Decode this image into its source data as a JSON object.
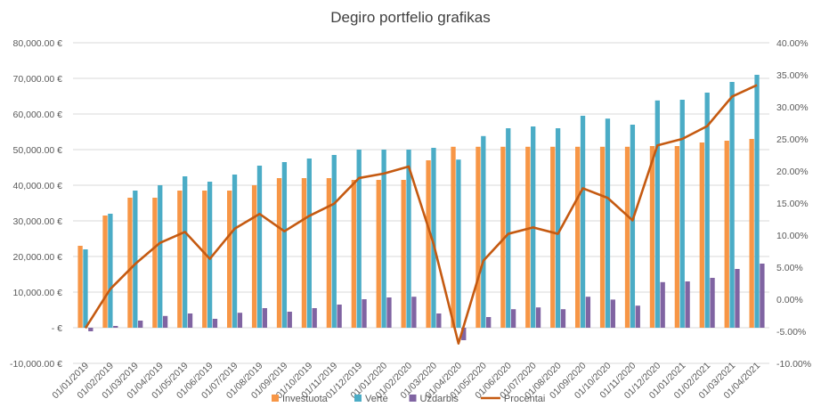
{
  "chart_data": {
    "type": "bar",
    "title": "Degiro portfelio grafikas",
    "categories": [
      "01/01/2019",
      "01/02/2019",
      "01/03/2019",
      "01/04/2019",
      "01/05/2019",
      "01/06/2019",
      "01/07/2019",
      "01/08/2019",
      "01/09/2019",
      "01/10/2019",
      "01/11/2019",
      "01/12/2019",
      "01/01/2020",
      "01/02/2020",
      "01/03/2020",
      "01/04/2020",
      "01/05/2020",
      "01/06/2020",
      "01/07/2020",
      "01/08/2020",
      "01/09/2020",
      "01/10/2020",
      "01/11/2020",
      "01/12/2020",
      "01/01/2021",
      "01/02/2021",
      "01/03/2021",
      "01/04/2021"
    ],
    "series": [
      {
        "name": "Investuota",
        "type": "bar",
        "axis": "left",
        "color": "#F79646",
        "values": [
          23000,
          31500,
          36500,
          36500,
          38500,
          38500,
          38500,
          40000,
          42000,
          42000,
          42000,
          41500,
          41500,
          41500,
          47000,
          50800,
          50800,
          50800,
          50800,
          50800,
          50800,
          50800,
          50800,
          51000,
          51000,
          52000,
          52500,
          53000
        ]
      },
      {
        "name": "Vertė",
        "type": "bar",
        "axis": "left",
        "color": "#4BACC6",
        "values": [
          22000,
          32000,
          38500,
          40000,
          42500,
          41000,
          43000,
          45500,
          46500,
          47500,
          48500,
          50000,
          50000,
          50000,
          50500,
          47200,
          53800,
          56000,
          56500,
          56000,
          59500,
          58700,
          57000,
          63800,
          64000,
          66000,
          69000,
          71000
        ]
      },
      {
        "name": "Uždarbis",
        "type": "bar",
        "axis": "left",
        "color": "#8064A2",
        "values": [
          -1000,
          500,
          2000,
          3300,
          4000,
          2500,
          4200,
          5500,
          4500,
          5500,
          6500,
          8000,
          8500,
          8700,
          4000,
          -3500,
          3000,
          5200,
          5700,
          5200,
          8700,
          7900,
          6200,
          12800,
          13000,
          14000,
          16500,
          18000
        ]
      },
      {
        "name": "Procentai",
        "type": "line",
        "axis": "right",
        "color": "#C55A11",
        "values": [
          -4.5,
          1.6,
          5.5,
          8.8,
          10.5,
          6.3,
          11.0,
          13.3,
          10.6,
          13.0,
          14.9,
          18.9,
          19.6,
          20.7,
          8.6,
          -6.9,
          6.0,
          10.2,
          11.2,
          10.2,
          17.3,
          15.8,
          12.3,
          24.0,
          25.0,
          27.0,
          31.6,
          33.4
        ]
      }
    ],
    "y_left": {
      "min": -10000,
      "max": 80000,
      "ticks": [
        -10000,
        0,
        10000,
        20000,
        30000,
        40000,
        50000,
        60000,
        70000,
        80000
      ],
      "tick_labels": [
        "-10,000.00 €",
        "-   €",
        "10,000.00 €",
        "20,000.00 €",
        "30,000.00 €",
        "40,000.00 €",
        "50,000.00 €",
        "60,000.00 €",
        "70,000.00 €",
        "80,000.00 €"
      ]
    },
    "y_right": {
      "min": -10,
      "max": 40,
      "ticks": [
        -10,
        -5,
        0,
        5,
        10,
        15,
        20,
        25,
        30,
        35,
        40
      ],
      "tick_labels": [
        "-10.00%",
        "-5.00%",
        "0.00%",
        "5.00%",
        "10.00%",
        "15.00%",
        "20.00%",
        "25.00%",
        "30.00%",
        "35.00%",
        "40.00%"
      ]
    },
    "grid": true,
    "legend_position": "bottom"
  }
}
